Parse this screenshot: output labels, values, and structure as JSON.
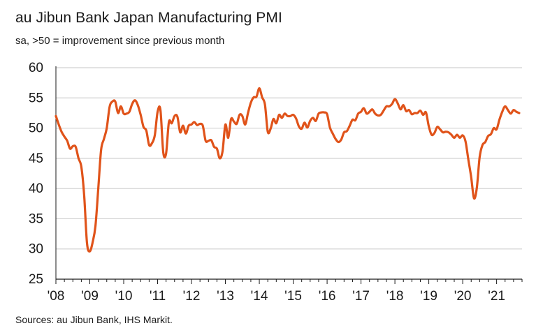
{
  "title": "au Jibun Bank Japan Manufacturing PMI",
  "subtitle": "sa, >50 = improvement since previous month",
  "source": "Sources: au Jibun Bank, IHS Markit.",
  "colors": {
    "line": "#e0531a",
    "grid": "#d0d0d0",
    "axis": "#1a1a1a"
  },
  "chart_data": {
    "type": "line",
    "title": "au Jibun Bank Japan Manufacturing PMI",
    "ylabel": "",
    "xlabel": "",
    "ylim": [
      25,
      60
    ],
    "xlim": [
      2008.0,
      2021.75
    ],
    "yticks": [
      25,
      30,
      35,
      40,
      45,
      50,
      55,
      60
    ],
    "xticks": [
      {
        "x": 2008,
        "label": "'08"
      },
      {
        "x": 2009,
        "label": "'09"
      },
      {
        "x": 2010,
        "label": "'10"
      },
      {
        "x": 2011,
        "label": "'11"
      },
      {
        "x": 2012,
        "label": "'12"
      },
      {
        "x": 2013,
        "label": "'13"
      },
      {
        "x": 2014,
        "label": "'14"
      },
      {
        "x": 2015,
        "label": "'15"
      },
      {
        "x": 2016,
        "label": "'16"
      },
      {
        "x": 2017,
        "label": "'17"
      },
      {
        "x": 2018,
        "label": "'18"
      },
      {
        "x": 2019,
        "label": "'19"
      },
      {
        "x": 2020,
        "label": "'20"
      },
      {
        "x": 2021,
        "label": "'21"
      }
    ],
    "series": [
      {
        "name": "Japan Manufacturing PMI",
        "x_start": 2008.0,
        "step": 0.08333,
        "values": [
          52.0,
          50.6,
          49.4,
          48.6,
          47.9,
          46.6,
          47.0,
          46.9,
          45.0,
          43.6,
          38.9,
          31.0,
          29.6,
          31.1,
          33.8,
          40.0,
          46.4,
          48.2,
          50.0,
          53.5,
          54.4,
          54.4,
          52.5,
          53.6,
          52.4,
          52.4,
          52.7,
          54.0,
          54.6,
          53.8,
          52.2,
          50.2,
          49.6,
          47.2,
          47.5,
          48.8,
          52.7,
          53.0,
          46.0,
          45.8,
          51.0,
          50.8,
          52.0,
          51.9,
          49.3,
          50.4,
          49.1,
          50.4,
          50.6,
          51.0,
          50.5,
          50.7,
          50.4,
          47.9,
          47.9,
          48.0,
          46.9,
          46.6,
          45.0,
          46.2,
          50.6,
          48.4,
          51.5,
          51.1,
          50.7,
          52.2,
          52.0,
          50.6,
          52.5,
          54.2,
          55.1,
          55.2,
          56.6,
          55.1,
          53.9,
          49.4,
          49.9,
          51.5,
          50.8,
          52.2,
          51.7,
          52.4,
          52.0,
          52.0,
          52.2,
          51.6,
          50.3,
          49.9,
          50.9,
          50.1,
          51.2,
          51.7,
          51.2,
          52.4,
          52.6,
          52.6,
          52.3,
          50.1,
          49.1,
          48.2,
          47.7,
          48.1,
          49.3,
          49.5,
          50.4,
          51.4,
          51.3,
          52.4,
          52.7,
          53.3,
          52.4,
          52.7,
          53.1,
          52.4,
          52.1,
          52.2,
          52.9,
          53.6,
          53.6,
          54.0,
          54.8,
          54.1,
          53.1,
          53.8,
          52.8,
          53.0,
          52.3,
          52.5,
          52.5,
          52.9,
          52.2,
          52.6,
          50.3,
          48.9,
          49.2,
          50.2,
          49.8,
          49.3,
          49.4,
          49.3,
          48.9,
          48.4,
          48.9,
          48.4,
          48.8,
          47.8,
          44.8,
          41.9,
          38.4,
          40.1,
          45.2,
          47.2,
          47.7,
          48.7,
          49.0,
          50.0,
          49.8,
          51.4,
          52.7,
          53.6,
          53.0,
          52.4,
          53.0,
          52.7,
          52.5
        ]
      }
    ]
  }
}
